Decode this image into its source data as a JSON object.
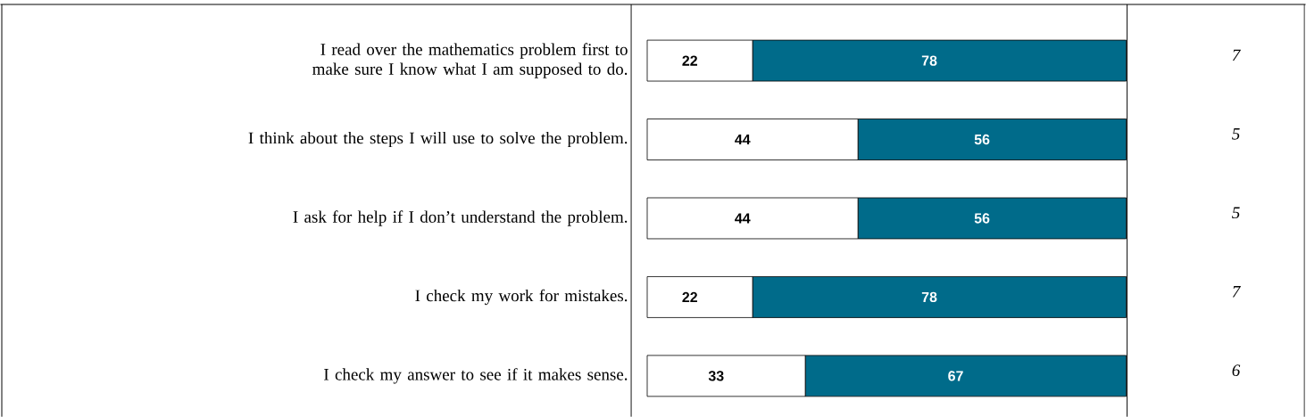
{
  "chart_data": {
    "type": "bar",
    "orientation": "horizontal",
    "stacked": true,
    "data_labels": true,
    "xlim": [
      0,
      100
    ],
    "categories": [
      "I read over the mathematics problem first to make sure I know what I am supposed to do.",
      "I think about the steps I will use to solve the problem.",
      "I ask for help if I don’t understand the problem.",
      "I check my work for mistakes.",
      "I check my answer to see if it makes sense."
    ],
    "series": [
      {
        "color": "#ffffff",
        "values": [
          22,
          44,
          44,
          22,
          33
        ]
      },
      {
        "color": "#006b8a",
        "values": [
          78,
          56,
          56,
          78,
          67
        ]
      }
    ],
    "annotations": [
      "7",
      "5",
      "5",
      "7",
      "6"
    ]
  }
}
